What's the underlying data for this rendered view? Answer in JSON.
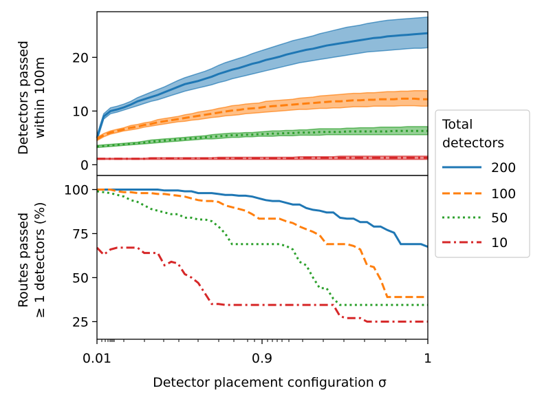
{
  "xlabel": "Detector placement configuration σ",
  "x_ticks": [
    "0.01",
    "0.9",
    "1"
  ],
  "legend": {
    "title_line1": "Total",
    "title_line2": "detectors",
    "entries": [
      "200",
      "100",
      "50",
      "10"
    ]
  },
  "colors": {
    "d200": "#1f77b4",
    "d100": "#ff7f0e",
    "d50": "#2ca02c",
    "d10": "#d62728"
  },
  "chart_data": [
    {
      "type": "line",
      "panel": "top",
      "ylabel_line1": "Detectors passed",
      "ylabel_line2": "within 100m",
      "ylim": [
        -2,
        28.5
      ],
      "y_ticks": [
        "0",
        "10",
        "20"
      ],
      "y_tick_values": [
        0,
        10,
        20
      ],
      "x_index": [
        0,
        1,
        2,
        3,
        4,
        5,
        6,
        7,
        8,
        9,
        10,
        11,
        12,
        13,
        14,
        15,
        16,
        17,
        18,
        19,
        20,
        21,
        22,
        23,
        24,
        25,
        26,
        27,
        28,
        29,
        30,
        31,
        32,
        33,
        34,
        35,
        36,
        37,
        38,
        39,
        40,
        41,
        42,
        43,
        44,
        45,
        46,
        47,
        48,
        49
      ],
      "series": [
        {
          "name": "200",
          "style": "solid",
          "values": [
            5.0,
            9.0,
            10.0,
            10.3,
            10.7,
            11.2,
            11.8,
            12.2,
            12.6,
            13.0,
            13.5,
            14.0,
            14.5,
            15.0,
            15.3,
            15.6,
            16.0,
            16.4,
            16.9,
            17.3,
            17.7,
            18.0,
            18.4,
            18.8,
            19.1,
            19.5,
            19.8,
            20.1,
            20.5,
            20.8,
            21.1,
            21.4,
            21.6,
            21.9,
            22.2,
            22.4,
            22.6,
            22.8,
            23.0,
            23.2,
            23.4,
            23.6,
            23.7,
            23.9,
            24.0,
            24.1,
            24.2,
            24.3,
            24.4,
            24.5
          ],
          "lower": [
            4.5,
            8.5,
            9.5,
            9.8,
            10.2,
            10.6,
            11.0,
            11.4,
            11.8,
            12.1,
            12.5,
            12.9,
            13.3,
            13.7,
            14.0,
            14.3,
            14.6,
            14.9,
            15.3,
            15.6,
            16.0,
            16.3,
            16.6,
            16.9,
            17.2,
            17.5,
            17.8,
            18.1,
            18.4,
            18.7,
            19.0,
            19.2,
            19.4,
            19.6,
            19.8,
            20.0,
            20.2,
            20.4,
            20.6,
            20.8,
            21.0,
            21.1,
            21.2,
            21.3,
            21.4,
            21.5,
            21.6,
            21.7,
            21.7,
            21.8
          ],
          "upper": [
            5.5,
            9.5,
            10.6,
            10.9,
            11.3,
            11.8,
            12.5,
            13.0,
            13.5,
            14.0,
            14.5,
            15.1,
            15.7,
            16.2,
            16.6,
            17.0,
            17.4,
            17.9,
            18.5,
            19.0,
            19.4,
            19.8,
            20.2,
            20.7,
            21.1,
            21.5,
            21.9,
            22.3,
            22.7,
            23.1,
            23.4,
            23.7,
            24.0,
            24.4,
            24.7,
            25.0,
            25.3,
            25.6,
            25.8,
            26.0,
            26.3,
            26.5,
            26.7,
            26.9,
            27.0,
            27.1,
            27.2,
            27.3,
            27.4,
            27.5
          ]
        },
        {
          "name": "100",
          "style": "dashed",
          "values": [
            4.8,
            5.5,
            6.0,
            6.3,
            6.6,
            6.9,
            7.1,
            7.4,
            7.6,
            7.9,
            8.1,
            8.3,
            8.5,
            8.7,
            8.9,
            9.1,
            9.3,
            9.5,
            9.7,
            9.9,
            10.1,
            10.2,
            10.4,
            10.5,
            10.6,
            10.8,
            10.9,
            11.0,
            11.1,
            11.2,
            11.3,
            11.4,
            11.5,
            11.6,
            11.7,
            11.8,
            11.8,
            11.9,
            12.0,
            12.0,
            12.1,
            12.1,
            12.2,
            12.2,
            12.2,
            12.3,
            12.3,
            12.3,
            12.2,
            12.2
          ],
          "lower": [
            4.5,
            5.2,
            5.7,
            6.0,
            6.3,
            6.5,
            6.7,
            7.0,
            7.2,
            7.4,
            7.6,
            7.8,
            8.0,
            8.1,
            8.3,
            8.4,
            8.6,
            8.8,
            8.9,
            9.1,
            9.2,
            9.3,
            9.5,
            9.6,
            9.7,
            9.8,
            9.9,
            10.0,
            10.1,
            10.2,
            10.3,
            10.3,
            10.4,
            10.5,
            10.5,
            10.6,
            10.6,
            10.7,
            10.8,
            10.8,
            10.8,
            10.9,
            10.9,
            10.9,
            10.9,
            11.0,
            11.0,
            11.0,
            10.9,
            10.9
          ],
          "upper": [
            5.1,
            5.8,
            6.3,
            6.6,
            6.9,
            7.3,
            7.5,
            7.8,
            8.0,
            8.4,
            8.6,
            8.8,
            9.0,
            9.3,
            9.5,
            9.8,
            10.0,
            10.2,
            10.5,
            10.7,
            11.0,
            11.1,
            11.3,
            11.4,
            11.5,
            11.8,
            11.9,
            12.0,
            12.1,
            12.2,
            12.4,
            12.5,
            12.6,
            12.8,
            12.9,
            13.0,
            13.1,
            13.2,
            13.3,
            13.3,
            13.4,
            13.4,
            13.5,
            13.6,
            13.6,
            13.7,
            13.7,
            13.8,
            13.8,
            13.8
          ]
        },
        {
          "name": "50",
          "style": "dotted",
          "values": [
            3.4,
            3.5,
            3.6,
            3.7,
            3.8,
            3.9,
            4.0,
            4.1,
            4.3,
            4.4,
            4.5,
            4.6,
            4.7,
            4.8,
            4.9,
            5.0,
            5.1,
            5.2,
            5.3,
            5.4,
            5.5,
            5.5,
            5.6,
            5.6,
            5.7,
            5.7,
            5.8,
            5.8,
            5.9,
            5.9,
            6.0,
            6.0,
            6.0,
            6.1,
            6.1,
            6.1,
            6.1,
            6.2,
            6.2,
            6.2,
            6.2,
            6.2,
            6.2,
            6.2,
            6.3,
            6.3,
            6.3,
            6.3,
            6.3,
            6.3
          ],
          "lower": [
            3.2,
            3.3,
            3.4,
            3.5,
            3.6,
            3.7,
            3.8,
            3.9,
            4.0,
            4.1,
            4.2,
            4.3,
            4.4,
            4.5,
            4.6,
            4.7,
            4.8,
            4.8,
            4.9,
            5.0,
            5.1,
            5.1,
            5.2,
            5.2,
            5.3,
            5.3,
            5.3,
            5.4,
            5.4,
            5.4,
            5.5,
            5.5,
            5.5,
            5.5,
            5.6,
            5.6,
            5.6,
            5.6,
            5.6,
            5.6,
            5.6,
            5.6,
            5.6,
            5.6,
            5.6,
            5.6,
            5.6,
            5.6,
            5.6,
            5.6
          ],
          "upper": [
            3.6,
            3.7,
            3.8,
            3.9,
            4.0,
            4.1,
            4.2,
            4.4,
            4.6,
            4.7,
            4.8,
            4.9,
            5.0,
            5.1,
            5.2,
            5.3,
            5.4,
            5.6,
            5.7,
            5.8,
            5.9,
            5.9,
            6.0,
            6.0,
            6.1,
            6.2,
            6.3,
            6.3,
            6.4,
            6.4,
            6.5,
            6.5,
            6.6,
            6.7,
            6.7,
            6.7,
            6.7,
            6.8,
            6.8,
            6.9,
            6.9,
            6.9,
            7.0,
            7.0,
            7.0,
            7.0,
            7.1,
            7.1,
            7.1,
            7.1
          ]
        },
        {
          "name": "10",
          "style": "dashdot",
          "values": [
            1.1,
            1.1,
            1.1,
            1.1,
            1.1,
            1.1,
            1.1,
            1.1,
            1.2,
            1.2,
            1.2,
            1.2,
            1.2,
            1.2,
            1.2,
            1.2,
            1.2,
            1.2,
            1.2,
            1.2,
            1.2,
            1.2,
            1.2,
            1.2,
            1.2,
            1.2,
            1.2,
            1.2,
            1.2,
            1.2,
            1.3,
            1.3,
            1.3,
            1.3,
            1.3,
            1.3,
            1.3,
            1.3,
            1.3,
            1.3,
            1.3,
            1.3,
            1.3,
            1.3,
            1.3,
            1.3,
            1.3,
            1.3,
            1.3,
            1.3
          ],
          "lower": [
            1.0,
            1.0,
            1.0,
            1.0,
            1.0,
            1.0,
            1.0,
            1.0,
            1.0,
            1.0,
            1.0,
            1.0,
            1.0,
            1.0,
            1.0,
            1.0,
            1.0,
            1.0,
            1.0,
            1.0,
            1.0,
            1.0,
            1.0,
            1.0,
            1.0,
            1.0,
            1.0,
            1.0,
            1.0,
            1.0,
            1.0,
            1.0,
            1.0,
            1.0,
            1.0,
            1.0,
            1.0,
            1.0,
            1.0,
            1.0,
            1.0,
            1.0,
            1.0,
            1.0,
            1.0,
            1.0,
            1.0,
            1.0,
            1.0,
            1.0
          ],
          "upper": [
            1.2,
            1.2,
            1.2,
            1.2,
            1.2,
            1.2,
            1.2,
            1.2,
            1.3,
            1.3,
            1.3,
            1.3,
            1.3,
            1.3,
            1.3,
            1.3,
            1.3,
            1.3,
            1.4,
            1.4,
            1.4,
            1.4,
            1.4,
            1.4,
            1.4,
            1.4,
            1.4,
            1.4,
            1.4,
            1.4,
            1.5,
            1.5,
            1.5,
            1.5,
            1.5,
            1.5,
            1.6,
            1.6,
            1.6,
            1.6,
            1.6,
            1.6,
            1.6,
            1.6,
            1.6,
            1.6,
            1.6,
            1.6,
            1.6,
            1.6
          ]
        }
      ]
    },
    {
      "type": "line",
      "panel": "bottom",
      "ylabel_line1": "Routes passed",
      "ylabel_line2": "≥ 1 detectors (%)",
      "ylim": [
        15,
        108
      ],
      "y_ticks": [
        "25",
        "50",
        "75",
        "100"
      ],
      "y_tick_values": [
        25,
        50,
        75,
        100
      ],
      "x_index": [
        0,
        1,
        2,
        3,
        4,
        5,
        6,
        7,
        8,
        9,
        10,
        11,
        12,
        13,
        14,
        15,
        16,
        17,
        18,
        19,
        20,
        21,
        22,
        23,
        24,
        25,
        26,
        27,
        28,
        29,
        30,
        31,
        32,
        33,
        34,
        35,
        36,
        37,
        38,
        39,
        40,
        41,
        42,
        43,
        44,
        45,
        46,
        47,
        48,
        49
      ],
      "series": [
        {
          "name": "200",
          "style": "solid",
          "values": [
            100,
            100,
            100,
            100,
            100,
            100,
            100,
            100,
            100,
            100,
            99.5,
            99.5,
            99.5,
            99,
            99,
            98,
            98,
            98,
            97.5,
            97,
            97,
            96.5,
            96.5,
            96,
            95,
            94,
            93.5,
            93.5,
            92.5,
            91.5,
            91.5,
            89.5,
            88.5,
            88,
            87,
            87,
            84,
            83.5,
            83.5,
            81.5,
            81.5,
            79,
            79,
            77,
            75.5,
            69,
            69,
            69,
            69,
            67.5
          ],
          "lower": [],
          "upper": []
        },
        {
          "name": "100",
          "style": "dashed",
          "values": [
            100,
            100,
            100,
            99,
            98.5,
            98.5,
            98,
            98,
            98,
            97.5,
            97.5,
            97,
            96.5,
            96,
            95,
            94,
            93.5,
            93.5,
            93,
            91,
            90,
            89,
            88,
            86,
            83.5,
            83.5,
            83.5,
            83.5,
            82,
            81,
            79,
            77.5,
            76,
            74,
            69,
            69,
            69,
            69,
            68,
            66,
            57,
            56,
            49,
            39,
            39,
            39,
            39,
            39,
            39,
            39
          ],
          "lower": [],
          "upper": []
        },
        {
          "name": "50",
          "style": "dotted",
          "values": [
            99,
            98.5,
            98,
            97,
            96,
            94,
            93,
            91,
            89,
            88,
            87,
            86,
            86,
            84,
            84,
            83,
            83,
            82,
            79,
            75,
            69,
            69,
            69,
            69,
            69,
            69,
            69,
            69,
            68,
            66,
            59,
            57,
            50,
            44,
            44,
            38,
            34.5,
            34.5,
            34.5,
            34.5,
            34.5,
            34.5,
            34.5,
            34.5,
            34.5,
            34.5,
            34.5,
            34.5,
            34.5,
            34.5
          ],
          "lower": [],
          "upper": []
        },
        {
          "name": "10",
          "style": "dashdot",
          "values": [
            67,
            63,
            66,
            67,
            67,
            67,
            67,
            64,
            64,
            64,
            57,
            59,
            58,
            52,
            50,
            47,
            41,
            35,
            35,
            34.5,
            34.5,
            34.5,
            34.5,
            34.5,
            34.5,
            34.5,
            34.5,
            34.5,
            34.5,
            34.5,
            34.5,
            34.5,
            34.5,
            34.5,
            34.5,
            34.5,
            28,
            27,
            27,
            27,
            25,
            25,
            25,
            25,
            25,
            25,
            25,
            25,
            25,
            25
          ],
          "lower": [],
          "upper": []
        }
      ]
    }
  ]
}
